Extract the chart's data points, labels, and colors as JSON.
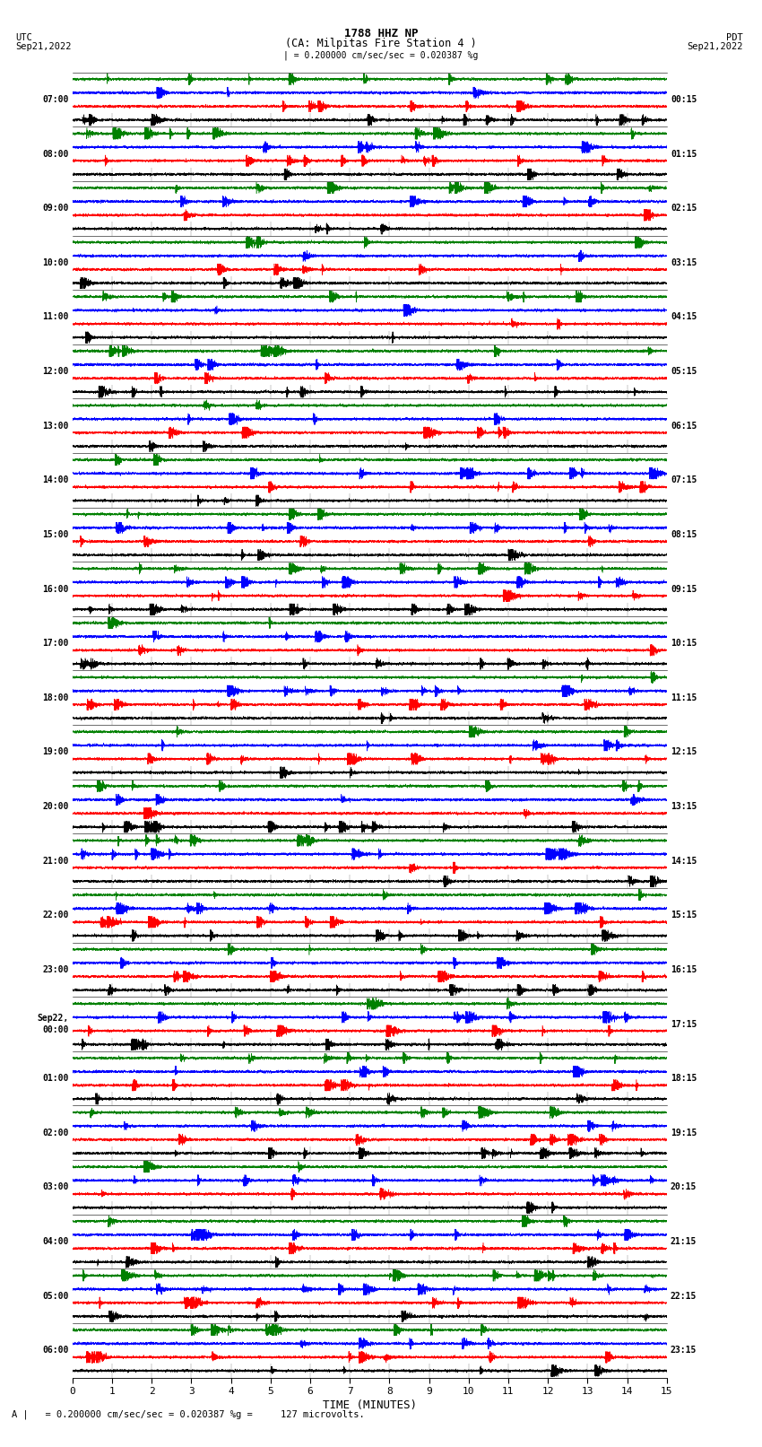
{
  "title_line1": "1788 HHZ NP",
  "title_line2": "(CA: Milpitas Fire Station 4 )",
  "utc_label": "UTC",
  "utc_date": "Sep21,2022",
  "pdt_label": "PDT",
  "pdt_date": "Sep21,2022",
  "scale_label": "| = 0.200000 cm/sec/sec = 0.020387 %g",
  "bottom_label": "A |   = 0.200000 cm/sec/sec = 0.020387 %g =     127 microvolts.",
  "xlabel": "TIME (MINUTES)",
  "xlim": [
    0,
    15
  ],
  "xticks": [
    0,
    1,
    2,
    3,
    4,
    5,
    6,
    7,
    8,
    9,
    10,
    11,
    12,
    13,
    14,
    15
  ],
  "left_times": [
    "07:00",
    "08:00",
    "09:00",
    "10:00",
    "11:00",
    "12:00",
    "13:00",
    "14:00",
    "15:00",
    "16:00",
    "17:00",
    "18:00",
    "19:00",
    "20:00",
    "21:00",
    "22:00",
    "23:00",
    "Sep22,|00:00",
    "01:00",
    "02:00",
    "03:00",
    "04:00",
    "05:00",
    "06:00"
  ],
  "right_times": [
    "00:15",
    "01:15",
    "02:15",
    "03:15",
    "04:15",
    "05:15",
    "06:15",
    "07:15",
    "08:15",
    "09:15",
    "10:15",
    "11:15",
    "12:15",
    "13:15",
    "14:15",
    "15:15",
    "16:15",
    "17:15",
    "18:15",
    "19:15",
    "20:15",
    "21:15",
    "22:15",
    "23:15"
  ],
  "colors": [
    "black",
    "red",
    "blue",
    "green"
  ],
  "n_rows": 24,
  "traces_per_row": 4,
  "noise_seed": 42,
  "bg_color": "white",
  "line_width": 0.35,
  "fig_width": 8.5,
  "fig_height": 16.13
}
